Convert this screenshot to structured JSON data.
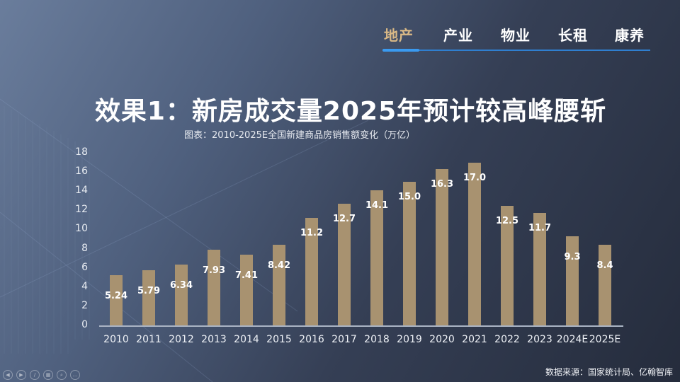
{
  "nav": {
    "items": [
      {
        "label": "地产",
        "active": true
      },
      {
        "label": "产业",
        "active": false
      },
      {
        "label": "物业",
        "active": false
      },
      {
        "label": "长租",
        "active": false
      },
      {
        "label": "康养",
        "active": false
      }
    ]
  },
  "title": "效果1：新房成交量2025年预计较高峰腰斩",
  "subtitle": "图表：2010-2025E全国新建商品房销售额变化（万亿）",
  "source": "数据来源：国家统计局、亿翰智库",
  "colors": {
    "bar": "#a89270",
    "nav_active": "#d9b986",
    "nav_indicator": "#3a9af0"
  },
  "controls": [
    "prev-icon",
    "next-icon",
    "pen-icon",
    "slides-icon",
    "zoom-icon",
    "more-icon"
  ],
  "chart_data": {
    "type": "bar",
    "title": "图表：2010-2025E全国新建商品房销售额变化（万亿）",
    "xlabel": "",
    "ylabel": "万亿",
    "ylim": [
      0,
      18
    ],
    "yticks": [
      0,
      2,
      4,
      6,
      8,
      10,
      12,
      14,
      16,
      18
    ],
    "grid": false,
    "legend": "none",
    "categories": [
      "2010",
      "2011",
      "2012",
      "2013",
      "2014",
      "2015",
      "2016",
      "2017",
      "2018",
      "2019",
      "2020",
      "2021",
      "2022",
      "2023",
      "2024E",
      "2025E"
    ],
    "values": [
      5.24,
      5.79,
      6.34,
      7.93,
      7.41,
      8.42,
      11.2,
      12.7,
      14.1,
      15.0,
      16.3,
      17.0,
      12.5,
      11.7,
      9.3,
      8.4
    ],
    "labels": [
      "5.24",
      "5.79",
      "6.34",
      "7.93",
      "7.41",
      "8.42",
      "11.2",
      "12.7",
      "14.1",
      "15.0",
      "16.3",
      "17.0",
      "12.5",
      "11.7",
      "9.3",
      "8.4"
    ]
  }
}
